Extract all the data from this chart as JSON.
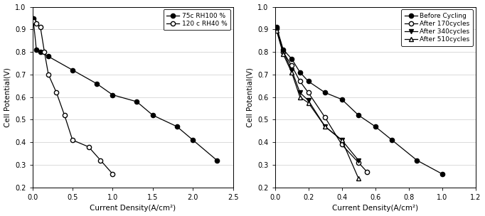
{
  "left_chart": {
    "xlabel": "Current Density(A/cm²)",
    "ylabel": "Cell Potential(V)",
    "xlim": [
      0,
      2.5
    ],
    "ylim": [
      0.2,
      1.0
    ],
    "xticks": [
      0.0,
      0.5,
      1.0,
      1.5,
      2.0,
      2.5
    ],
    "yticks": [
      0.2,
      0.3,
      0.4,
      0.5,
      0.6,
      0.7,
      0.8,
      0.9,
      1.0
    ],
    "series": [
      {
        "label": "75c RH100 %",
        "x": [
          0.01,
          0.05,
          0.1,
          0.2,
          0.5,
          0.8,
          1.0,
          1.3,
          1.5,
          1.8,
          2.0,
          2.3
        ],
        "y": [
          0.948,
          0.81,
          0.8,
          0.78,
          0.72,
          0.66,
          0.61,
          0.58,
          0.52,
          0.47,
          0.41,
          0.32
        ],
        "marker": "o",
        "fillstyle": "full",
        "linestyle": "-"
      },
      {
        "label": "120 c RH40 %",
        "x": [
          0.01,
          0.05,
          0.1,
          0.15,
          0.2,
          0.3,
          0.4,
          0.5,
          0.7,
          0.85,
          1.0
        ],
        "y": [
          0.935,
          0.925,
          0.91,
          0.8,
          0.7,
          0.62,
          0.52,
          0.41,
          0.38,
          0.32,
          0.26
        ],
        "marker": "o",
        "fillstyle": "none",
        "linestyle": "-"
      }
    ]
  },
  "right_chart": {
    "xlabel": "Current Density(A/cm²)",
    "ylabel": "Cell Potential(V)",
    "xlim": [
      0,
      1.2
    ],
    "ylim": [
      0.2,
      1.0
    ],
    "xticks": [
      0.0,
      0.2,
      0.4,
      0.6,
      0.8,
      1.0,
      1.2
    ],
    "yticks": [
      0.2,
      0.3,
      0.4,
      0.5,
      0.6,
      0.7,
      0.8,
      0.9,
      1.0
    ],
    "series": [
      {
        "label": "Before Cycling",
        "x": [
          0.01,
          0.05,
          0.1,
          0.15,
          0.2,
          0.3,
          0.4,
          0.5,
          0.6,
          0.7,
          0.85,
          1.0
        ],
        "y": [
          0.91,
          0.81,
          0.77,
          0.71,
          0.67,
          0.62,
          0.59,
          0.52,
          0.47,
          0.41,
          0.32,
          0.26
        ],
        "marker": "o",
        "fillstyle": "full",
        "linestyle": "-"
      },
      {
        "label": "After 170cycles",
        "x": [
          0.01,
          0.05,
          0.1,
          0.15,
          0.2,
          0.3,
          0.4,
          0.5,
          0.55
        ],
        "y": [
          0.905,
          0.8,
          0.74,
          0.67,
          0.62,
          0.51,
          0.39,
          0.31,
          0.27
        ],
        "marker": "o",
        "fillstyle": "none",
        "linestyle": "-"
      },
      {
        "label": "After 340cycles",
        "x": [
          0.01,
          0.05,
          0.1,
          0.15,
          0.2,
          0.3,
          0.4,
          0.5
        ],
        "y": [
          0.9,
          0.8,
          0.72,
          0.62,
          0.585,
          0.47,
          0.41,
          0.32
        ],
        "marker": "v",
        "fillstyle": "full",
        "linestyle": "-"
      },
      {
        "label": "After 510cycles",
        "x": [
          0.01,
          0.05,
          0.1,
          0.15,
          0.2,
          0.3,
          0.4,
          0.5
        ],
        "y": [
          0.895,
          0.79,
          0.71,
          0.6,
          0.575,
          0.47,
          0.41,
          0.24
        ],
        "marker": "^",
        "fillstyle": "none",
        "linestyle": "-"
      }
    ]
  }
}
